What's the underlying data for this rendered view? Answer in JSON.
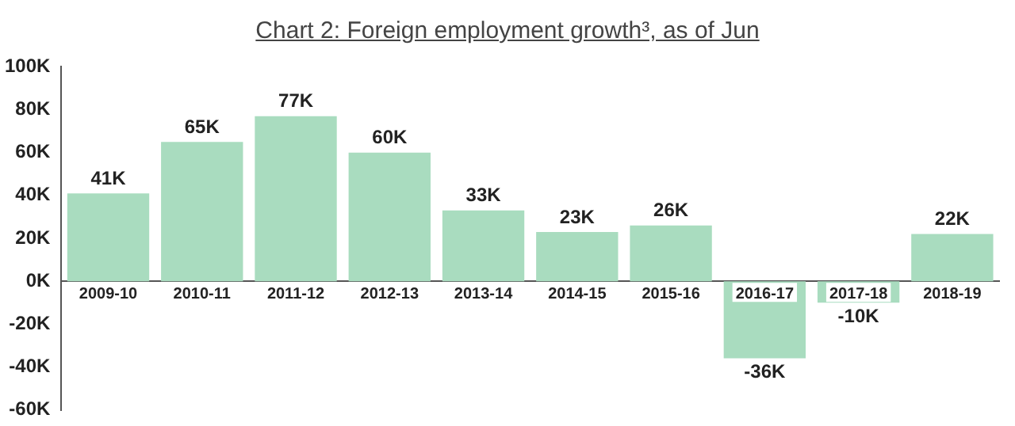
{
  "chart_data": {
    "type": "bar",
    "title": "Chart 2: Foreign employment growth³, as of Jun",
    "categories": [
      "2009-10",
      "2010-11",
      "2011-12",
      "2012-13",
      "2013-14",
      "2014-15",
      "2015-16",
      "2016-17",
      "2017-18",
      "2018-19"
    ],
    "values": [
      41000,
      65000,
      77000,
      60000,
      33000,
      23000,
      26000,
      -36000,
      -10000,
      22000
    ],
    "value_labels": [
      "41K",
      "65K",
      "77K",
      "60K",
      "33K",
      "23K",
      "26K",
      "-36K",
      "-10K",
      "22K"
    ],
    "color": "#a9dcbf",
    "ylim": [
      -60000,
      100000
    ],
    "yticks": [
      {
        "value": -60000,
        "label": "-60K"
      },
      {
        "value": -40000,
        "label": "-40K"
      },
      {
        "value": -20000,
        "label": "-20K"
      },
      {
        "value": 0,
        "label": "0K"
      },
      {
        "value": 20000,
        "label": "20K"
      },
      {
        "value": 40000,
        "label": "40K"
      },
      {
        "value": 60000,
        "label": "60K"
      },
      {
        "value": 80000,
        "label": "80K"
      },
      {
        "value": 100000,
        "label": "100K"
      }
    ],
    "grid": false,
    "legend": false
  }
}
